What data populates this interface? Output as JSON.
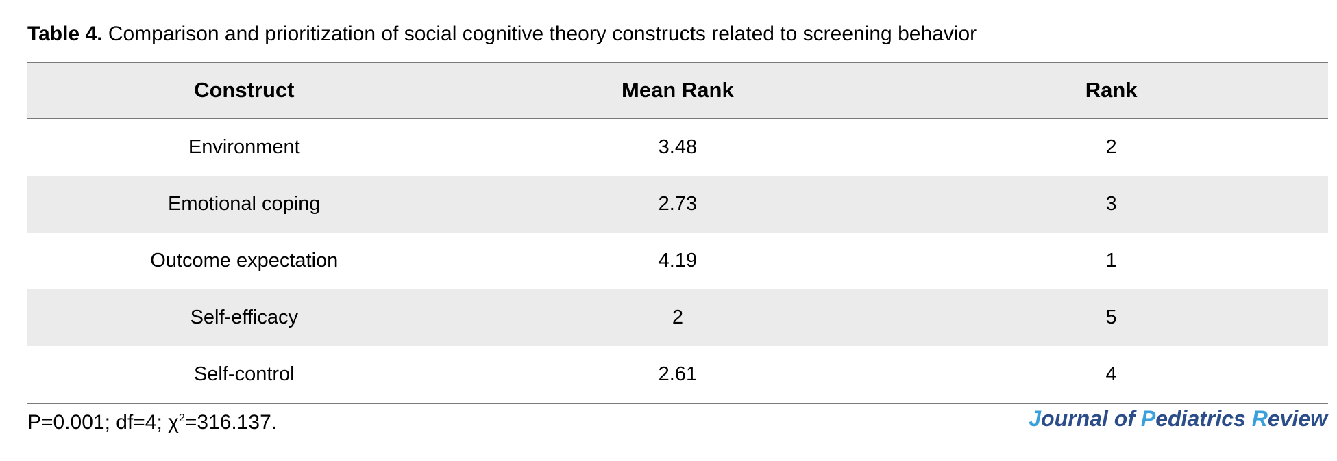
{
  "caption": {
    "label": "Table 4.",
    "text": "Comparison and prioritization of social cognitive theory constructs related to screening behavior"
  },
  "table": {
    "headers": [
      "Construct",
      "Mean Rank",
      "Rank"
    ],
    "rows": [
      [
        "Environment",
        "3.48",
        "2"
      ],
      [
        "Emotional coping",
        "2.73",
        "3"
      ],
      [
        "Outcome expectation",
        "4.19",
        "1"
      ],
      [
        "Self-efficacy",
        "2",
        "5"
      ],
      [
        "Self-control",
        "2.61",
        "4"
      ]
    ]
  },
  "footnote": {
    "before_sup": "P=0.001; df=4; χ",
    "sup": "2",
    "after_sup": "=316.137."
  },
  "logo": {
    "j": "J",
    "ournal_of": "ournal of ",
    "p": "P",
    "ediatrics": "ediatrics ",
    "r": "R",
    "eview": "eview"
  },
  "colors": {
    "header_bg": "#ebebeb",
    "stripe_bg": "#ebebeb",
    "rule": "#7a7a7a",
    "logo_dark": "#2b4d8a",
    "logo_accent": "#3aa0db"
  }
}
